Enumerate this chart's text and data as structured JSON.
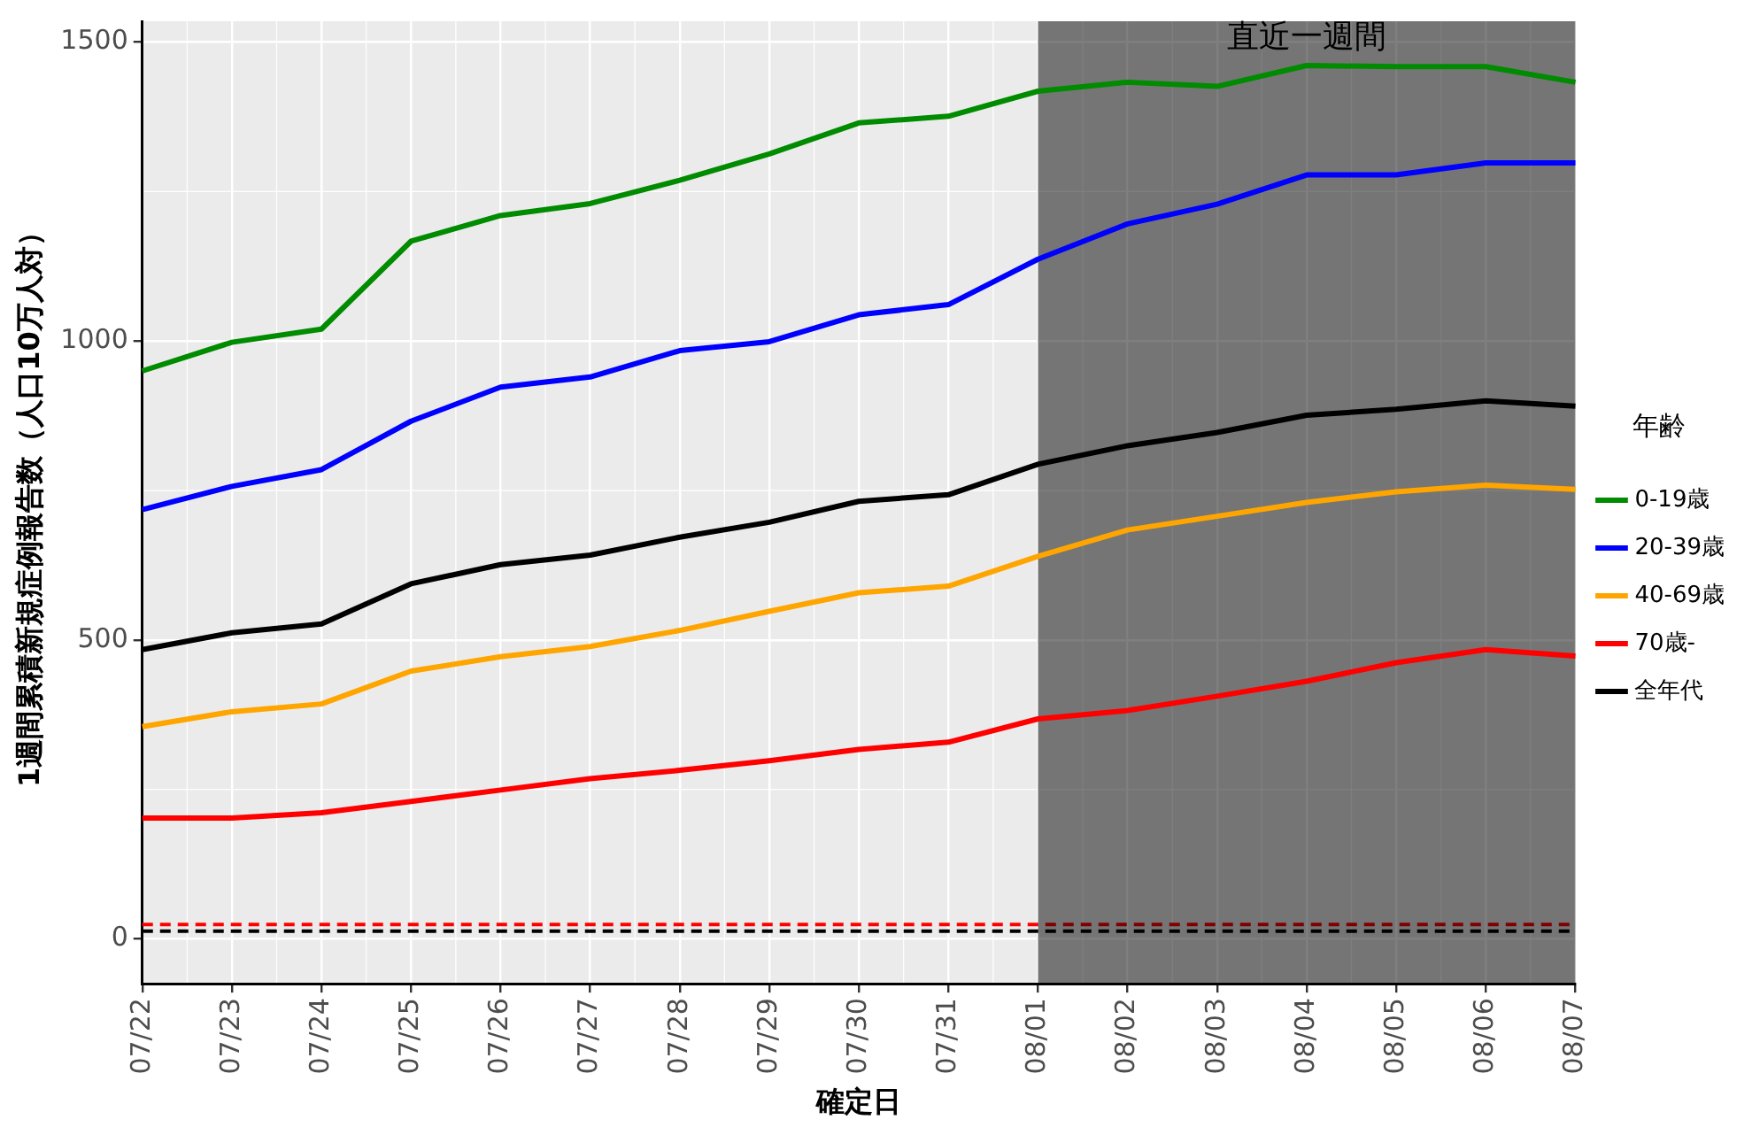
{
  "chart_data": {
    "type": "line",
    "xlabel": "確定日",
    "ylabel": "1週間累積新規症例報告数（人口10万人対）",
    "legend_title": "年齢",
    "legend": "right",
    "grid": true,
    "line_style": "solid",
    "marker": "none",
    "categories": [
      "07/22",
      "07/23",
      "07/24",
      "07/25",
      "07/26",
      "07/27",
      "07/28",
      "07/29",
      "07/30",
      "07/31",
      "08/01",
      "08/02",
      "08/03",
      "08/04",
      "08/05",
      "08/06",
      "08/07"
    ],
    "ylim": [
      -75,
      1535
    ],
    "yticks": [
      0,
      500,
      1000,
      1500
    ],
    "series": [
      {
        "name": "0-19歳",
        "color": "#008b00",
        "values": [
          950,
          998,
          1020,
          1167,
          1210,
          1230,
          1269,
          1313,
          1365,
          1376,
          1418,
          1433,
          1426,
          1461,
          1459,
          1459,
          1433
        ]
      },
      {
        "name": "20-39歳",
        "color": "#0000ff",
        "values": [
          718,
          757,
          785,
          866,
          923,
          940,
          984,
          999,
          1044,
          1061,
          1137,
          1196,
          1229,
          1278,
          1278,
          1298,
          1298
        ]
      },
      {
        "name": "40-69歳",
        "color": "#ffa500",
        "values": [
          355,
          380,
          393,
          448,
          472,
          489,
          516,
          548,
          579,
          590,
          640,
          684,
          707,
          730,
          748,
          759,
          752
        ]
      },
      {
        "name": "70歳-",
        "color": "#ff0000",
        "values": [
          202,
          202,
          211,
          230,
          249,
          268,
          282,
          298,
          317,
          329,
          368,
          382,
          406,
          431,
          462,
          484,
          473
        ]
      },
      {
        "name": "全年代",
        "color": "#000000",
        "values": [
          484,
          512,
          527,
          594,
          626,
          642,
          672,
          697,
          732,
          743,
          794,
          825,
          847,
          876,
          886,
          900,
          891
        ]
      }
    ],
    "ref_lines": [
      {
        "axis": "y",
        "value": 24,
        "color": "#ff0000",
        "line_style": "dashed"
      },
      {
        "axis": "y",
        "value": 13,
        "color": "#000000",
        "line_style": "dashed"
      }
    ],
    "bands": [
      {
        "axis": "x",
        "from": "08/01",
        "to": "08/07",
        "label": "直近一週間",
        "color": "#000000"
      }
    ]
  }
}
